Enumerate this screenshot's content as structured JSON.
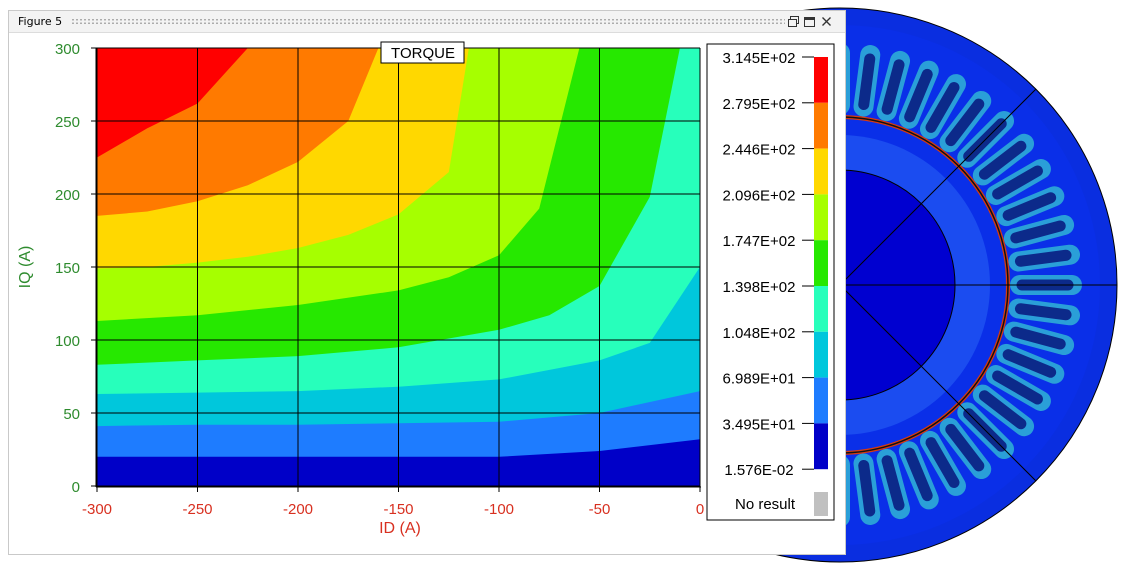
{
  "window": {
    "title": "Figure 5",
    "controls": [
      "float-icon",
      "maximize-icon",
      "close-icon"
    ]
  },
  "chart_data": {
    "type": "heatmap",
    "title": "TORQUE",
    "xlabel": "ID (A)",
    "ylabel": "IQ (A)",
    "xlim": [
      -300,
      0
    ],
    "ylim": [
      0,
      300
    ],
    "x_ticks": [
      -300,
      -250,
      -200,
      -150,
      -100,
      -50,
      0
    ],
    "x_tick_labels": [
      "-300",
      "-250",
      "-200",
      "-150",
      "-100",
      "-50",
      "0"
    ],
    "y_ticks": [
      0,
      50,
      100,
      150,
      200,
      250,
      300
    ],
    "y_tick_labels": [
      "0",
      "50",
      "100",
      "150",
      "200",
      "250",
      "300"
    ],
    "grid": true,
    "colorbar": {
      "labels": [
        "3.145E+02",
        "2.795E+02",
        "2.446E+02",
        "2.096E+02",
        "1.747E+02",
        "1.398E+02",
        "1.048E+02",
        "6.989E+01",
        "3.495E+01",
        "1.576E-02"
      ],
      "level_values": [
        314.5,
        279.5,
        244.6,
        209.6,
        174.7,
        139.8,
        104.8,
        69.89,
        34.95,
        0.01576
      ],
      "band_colors": [
        "#ff0000",
        "#ff7a00",
        "#ffd800",
        "#a6ff00",
        "#26e800",
        "#27ffbb",
        "#00c7dc",
        "#1e7cff",
        "#0000c8"
      ],
      "no_result_label": "No result",
      "no_result_color": "#c0c0c0"
    },
    "contours": [
      {
        "level": 279.5,
        "ids": [
          -300,
          -275,
          -250,
          -225
        ],
        "iqs": [
          225,
          245,
          262,
          300
        ]
      },
      {
        "level": 244.6,
        "ids": [
          -300,
          -275,
          -250,
          -225,
          -200,
          -175,
          -160
        ],
        "iqs": [
          185,
          188,
          195,
          206,
          222,
          250,
          300
        ]
      },
      {
        "level": 209.6,
        "ids": [
          -300,
          -275,
          -250,
          -225,
          -200,
          -175,
          -150,
          -125,
          -115
        ],
        "iqs": [
          149,
          150,
          153,
          157,
          163,
          172,
          186,
          215,
          300
        ]
      },
      {
        "level": 174.7,
        "ids": [
          -300,
          -250,
          -200,
          -150,
          -125,
          -100,
          -80,
          -60
        ],
        "iqs": [
          113,
          117,
          124,
          134,
          143,
          158,
          190,
          300
        ]
      },
      {
        "level": 139.8,
        "ids": [
          -300,
          -250,
          -200,
          -150,
          -100,
          -75,
          -50,
          -25,
          -10
        ],
        "iqs": [
          83,
          86,
          89,
          95,
          107,
          117,
          137,
          198,
          300
        ]
      },
      {
        "level": 104.8,
        "ids": [
          -300,
          -250,
          -200,
          -150,
          -100,
          -50,
          -25,
          0
        ],
        "iqs": [
          63,
          64,
          65,
          68,
          73,
          86,
          98,
          150
        ]
      },
      {
        "level": 69.89,
        "ids": [
          -300,
          -250,
          -200,
          -150,
          -100,
          -50,
          0
        ],
        "iqs": [
          41,
          42,
          42,
          43,
          44,
          50,
          65
        ]
      },
      {
        "level": 34.95,
        "ids": [
          -300,
          -200,
          -100,
          -50,
          0
        ],
        "iqs": [
          20,
          20,
          20,
          24,
          32
        ]
      }
    ]
  }
}
